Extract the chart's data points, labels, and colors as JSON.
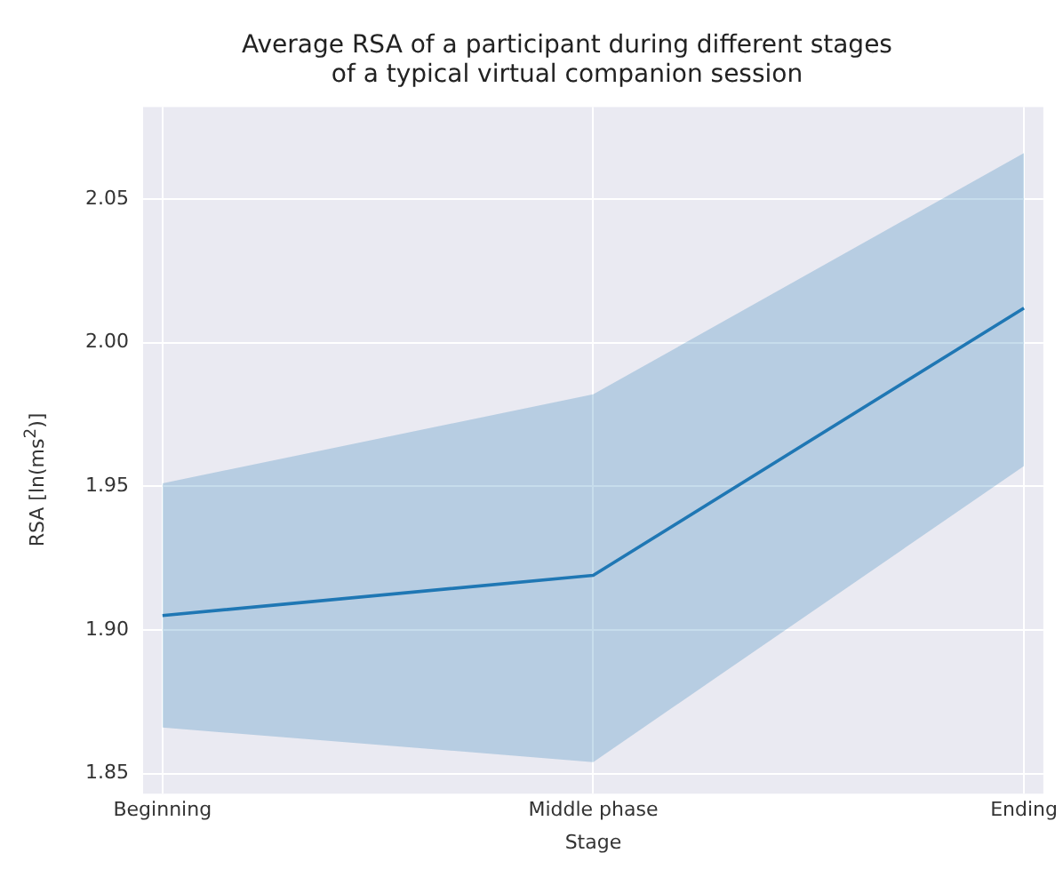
{
  "chart_data": {
    "type": "line",
    "title": "Average RSA of a participant during different stages\nof a typical virtual companion session",
    "xlabel": "Stage",
    "ylabel": "RSA [ln(ms$^{2}$)]",
    "categories": [
      "Beginning",
      "Middle phase",
      "Ending"
    ],
    "series": [
      {
        "color": "#1f77b4",
        "values": [
          1.905,
          1.919,
          2.012
        ],
        "lower": [
          1.866,
          1.854,
          1.957
        ],
        "upper": [
          1.951,
          1.982,
          2.066
        ]
      }
    ],
    "ylim": [
      1.843,
      2.082
    ],
    "yticks": [
      1.85,
      {
        "value": 1.9,
        "label": "1.90"
      },
      1.95,
      {
        "value": 2.0,
        "label": "2.00"
      },
      2.05
    ],
    "grid": true
  }
}
